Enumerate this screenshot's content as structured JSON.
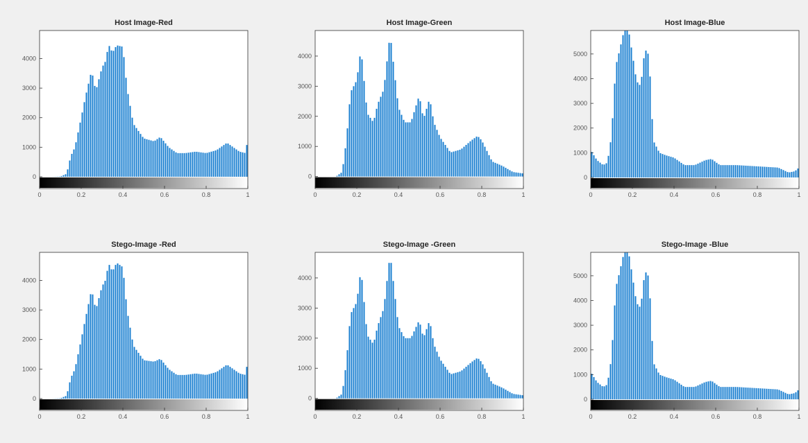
{
  "colors": {
    "figure_background": "#f0f0f0",
    "axes_background": "#ffffff",
    "bar": "#1a7fd0",
    "axis": "#333333",
    "text": "#262626"
  },
  "chart_data": [
    {
      "type": "bar",
      "title": "Host Image-Red",
      "xlim": [
        0,
        1
      ],
      "ylim": [
        -400,
        4950
      ],
      "xticks": [
        "0",
        "0.2",
        "0.4",
        "0.6",
        "0.8",
        "1"
      ],
      "yticks": [
        0,
        1000,
        2000,
        3000,
        4000
      ],
      "colorbar": "grayscale",
      "x": [
        0,
        0.05,
        0.1,
        0.13,
        0.15,
        0.17,
        0.2,
        0.22,
        0.25,
        0.27,
        0.3,
        0.32,
        0.33,
        0.35,
        0.37,
        0.4,
        0.42,
        0.45,
        0.5,
        0.55,
        0.58,
        0.62,
        0.66,
        0.7,
        0.75,
        0.8,
        0.85,
        0.9,
        0.93,
        0.96,
        0.99,
        1
      ],
      "values": [
        0,
        0,
        10,
        100,
        700,
        1000,
        2000,
        2700,
        3600,
        2900,
        3700,
        3950,
        4500,
        4200,
        4450,
        4400,
        3000,
        1800,
        1300,
        1200,
        1350,
        1000,
        800,
        800,
        850,
        800,
        900,
        1150,
        1000,
        850,
        800,
        1350
      ]
    },
    {
      "type": "bar",
      "title": "Host Image-Green",
      "xlim": [
        0,
        1
      ],
      "ylim": [
        -400,
        4850
      ],
      "xticks": [
        "0",
        "0.2",
        "0.4",
        "0.6",
        "0.8",
        "1"
      ],
      "yticks": [
        0,
        1000,
        2000,
        3000,
        4000
      ],
      "colorbar": "grayscale",
      "x": [
        0,
        0.1,
        0.13,
        0.15,
        0.17,
        0.2,
        0.22,
        0.25,
        0.28,
        0.3,
        0.33,
        0.36,
        0.38,
        0.4,
        0.43,
        0.46,
        0.5,
        0.52,
        0.55,
        0.57,
        0.6,
        0.65,
        0.7,
        0.75,
        0.78,
        0.8,
        0.85,
        0.9,
        0.95,
        1
      ],
      "values": [
        0,
        0,
        150,
        1200,
        2800,
        3200,
        4250,
        2100,
        1800,
        2400,
        2900,
        4750,
        3500,
        2300,
        1800,
        1800,
        2700,
        1900,
        2600,
        1800,
        1300,
        800,
        900,
        1200,
        1350,
        1200,
        500,
        350,
        150,
        100
      ]
    },
    {
      "type": "bar",
      "title": "Host Image-Blue",
      "xlim": [
        0,
        1
      ],
      "ylim": [
        -450,
        5950
      ],
      "xticks": [
        "0",
        "0.2",
        "0.4",
        "0.6",
        "0.8",
        "1"
      ],
      "yticks": [
        0,
        1000,
        2000,
        3000,
        4000,
        5000
      ],
      "colorbar": "grayscale",
      "x": [
        0,
        0.03,
        0.06,
        0.08,
        0.1,
        0.12,
        0.14,
        0.16,
        0.18,
        0.2,
        0.22,
        0.24,
        0.26,
        0.28,
        0.3,
        0.33,
        0.36,
        0.4,
        0.45,
        0.5,
        0.55,
        0.58,
        0.62,
        0.7,
        0.8,
        0.9,
        0.95,
        0.98,
        1
      ],
      "values": [
        1100,
        700,
        500,
        600,
        1700,
        4500,
        5200,
        5950,
        6050,
        5000,
        3900,
        3700,
        5200,
        4950,
        1500,
        1000,
        900,
        800,
        500,
        500,
        700,
        750,
        500,
        500,
        450,
        400,
        200,
        250,
        400
      ]
    },
    {
      "type": "bar",
      "title": "Stego-Image -Red",
      "xlim": [
        0,
        1
      ],
      "ylim": [
        -400,
        4950
      ],
      "xticks": [
        "0",
        "0.2",
        "0.4",
        "0.6",
        "0.8",
        "1"
      ],
      "yticks": [
        0,
        1000,
        2000,
        3000,
        4000
      ],
      "colorbar": "grayscale",
      "x": [
        0,
        0.05,
        0.1,
        0.13,
        0.15,
        0.17,
        0.2,
        0.22,
        0.25,
        0.27,
        0.3,
        0.32,
        0.33,
        0.35,
        0.37,
        0.4,
        0.42,
        0.45,
        0.5,
        0.55,
        0.58,
        0.62,
        0.66,
        0.7,
        0.75,
        0.8,
        0.85,
        0.9,
        0.93,
        0.96,
        0.99,
        1
      ],
      "values": [
        0,
        0,
        10,
        100,
        700,
        1000,
        2000,
        2700,
        3700,
        3000,
        3800,
        4050,
        4600,
        4300,
        4600,
        4450,
        3000,
        1800,
        1300,
        1250,
        1350,
        1000,
        800,
        800,
        850,
        800,
        900,
        1150,
        1000,
        850,
        800,
        1350
      ]
    },
    {
      "type": "bar",
      "title": "Stego-Image -Green",
      "xlim": [
        0,
        1
      ],
      "ylim": [
        -400,
        4850
      ],
      "xticks": [
        "0",
        "0.2",
        "0.4",
        "0.6",
        "0.8",
        "1"
      ],
      "yticks": [
        0,
        1000,
        2000,
        3000,
        4000
      ],
      "colorbar": "grayscale",
      "x": [
        0,
        0.1,
        0.13,
        0.15,
        0.17,
        0.2,
        0.22,
        0.25,
        0.28,
        0.3,
        0.33,
        0.36,
        0.38,
        0.4,
        0.43,
        0.46,
        0.5,
        0.52,
        0.55,
        0.57,
        0.6,
        0.65,
        0.7,
        0.75,
        0.78,
        0.8,
        0.85,
        0.9,
        0.95,
        1
      ],
      "values": [
        0,
        0,
        150,
        1200,
        2800,
        3200,
        4300,
        2100,
        1800,
        2400,
        3000,
        4800,
        3600,
        2400,
        2000,
        2000,
        2600,
        2000,
        2600,
        1800,
        1300,
        800,
        900,
        1200,
        1350,
        1200,
        500,
        350,
        150,
        100
      ]
    },
    {
      "type": "bar",
      "title": "Stego-Image -Blue",
      "xlim": [
        0,
        1
      ],
      "ylim": [
        -450,
        5950
      ],
      "xticks": [
        "0",
        "0.2",
        "0.4",
        "0.6",
        "0.8",
        "1"
      ],
      "yticks": [
        0,
        1000,
        2000,
        3000,
        4000,
        5000
      ],
      "colorbar": "grayscale",
      "x": [
        0,
        0.03,
        0.06,
        0.08,
        0.1,
        0.12,
        0.14,
        0.16,
        0.18,
        0.2,
        0.22,
        0.24,
        0.26,
        0.28,
        0.3,
        0.33,
        0.36,
        0.4,
        0.45,
        0.5,
        0.55,
        0.58,
        0.62,
        0.7,
        0.8,
        0.9,
        0.95,
        0.98,
        1
      ],
      "values": [
        1100,
        700,
        500,
        600,
        1700,
        4500,
        5200,
        5950,
        6050,
        5000,
        3900,
        3700,
        5200,
        4950,
        1500,
        1000,
        900,
        800,
        500,
        500,
        700,
        750,
        500,
        500,
        450,
        400,
        200,
        250,
        400
      ]
    }
  ]
}
